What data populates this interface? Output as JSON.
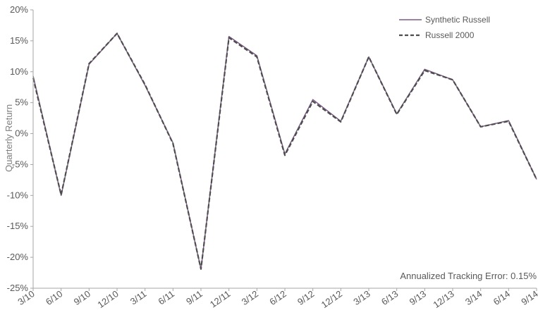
{
  "chart_data": {
    "type": "line",
    "ylabel": "Quarterly Return",
    "ylim": [
      -25,
      20
    ],
    "yticks": [
      "-25%",
      "-20%",
      "-15%",
      "-10%",
      "-5%",
      "0%",
      "5%",
      "10%",
      "15%",
      "20%"
    ],
    "ytick_values": [
      -25,
      -20,
      -15,
      -10,
      -5,
      0,
      5,
      10,
      15,
      20
    ],
    "categories": [
      "3/10",
      "6/10",
      "9/10",
      "12/10",
      "3/11",
      "6/11",
      "9/11",
      "12/11",
      "3/12",
      "6/12",
      "9/12",
      "12/12",
      "3/13",
      "6/13",
      "9/13",
      "12/13",
      "3/14",
      "6/14",
      "9/14"
    ],
    "series": [
      {
        "name": "Synthetic Russell",
        "color": "#7b5a86",
        "style": "solid",
        "values": [
          9.3,
          -10.0,
          11.2,
          16.2,
          7.8,
          -1.5,
          -21.9,
          15.7,
          12.6,
          -3.3,
          5.5,
          2.0,
          12.4,
          3.2,
          10.4,
          8.7,
          1.1,
          2.1,
          -7.4
        ]
      },
      {
        "name": "Russell 2000",
        "color": "#4d4d4d",
        "style": "dashed",
        "values": [
          9.0,
          -9.9,
          11.3,
          16.2,
          7.9,
          -1.6,
          -21.9,
          15.5,
          12.4,
          -3.5,
          5.2,
          1.9,
          12.4,
          3.1,
          10.2,
          8.7,
          1.1,
          2.0,
          -7.4
        ]
      }
    ],
    "legend_position": "top-right",
    "grid": false,
    "annotation": "Annualized  Tracking Error: 0.15%"
  }
}
